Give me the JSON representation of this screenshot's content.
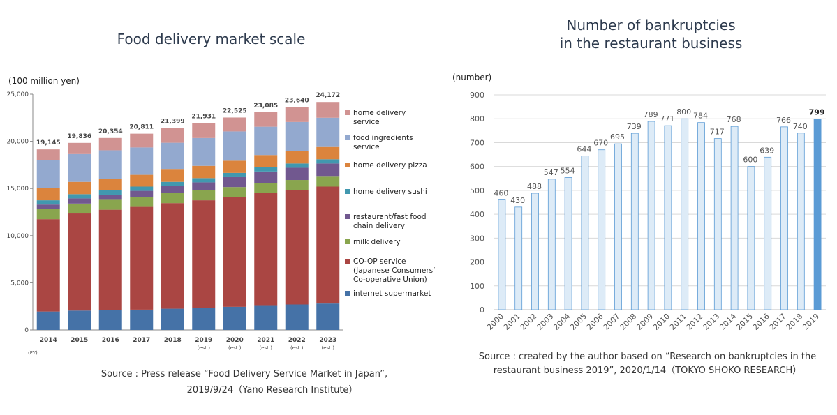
{
  "left": {
    "title": "Food delivery market scale",
    "unit": "(100 million yen)",
    "fy_label": "(FY)",
    "source_line1": "Source : Press release “Food Delivery Service Market in Japan”,",
    "source_line2": "2019/9/24（Yano Research Institute）"
  },
  "right": {
    "title_line1": "Number of bankruptcies",
    "title_line2": "in the restaurant business",
    "unit": "(number)",
    "source_line1": "Source : created by the author based on “Research on bankruptcies in the",
    "source_line2": "restaurant business 2019”, 2020/1/14（TOKYO SHOKO RESEARCH）"
  },
  "chart_data": [
    {
      "type": "bar",
      "stacked": true,
      "categories": [
        "2014",
        "2015",
        "2016",
        "2017",
        "2018",
        "2019",
        "2020",
        "2021",
        "2022",
        "2023"
      ],
      "category_sublabels": [
        "",
        "",
        "",
        "",
        "",
        "(est.)",
        "(est.)",
        "(est.)",
        "(est.)",
        "(est.)"
      ],
      "ylim": [
        0,
        25000
      ],
      "yticks": [
        0,
        5000,
        10000,
        15000,
        20000,
        25000
      ],
      "ytick_labels": [
        "0",
        "5,000",
        "10,000",
        "15,000",
        "20,000",
        "25,000"
      ],
      "totals": [
        19145,
        19836,
        20354,
        20811,
        21399,
        21931,
        22525,
        23085,
        23640,
        24172
      ],
      "total_labels": [
        "19,145",
        "19,836",
        "20,354",
        "20,811",
        "21,399",
        "21,931",
        "22,525",
        "23,085",
        "23,640",
        "24,172"
      ],
      "legend_position": "right",
      "series": [
        {
          "name": "internet supermarket",
          "color": "#4572a7",
          "values": [
            1950,
            2050,
            2100,
            2150,
            2250,
            2350,
            2450,
            2550,
            2700,
            2800
          ]
        },
        {
          "name": "CO-OP service (Japanese Consumers' Co-operative Union)",
          "color": "#aa4643",
          "values": [
            9800,
            10300,
            10650,
            10900,
            11200,
            11400,
            11650,
            11950,
            12150,
            12400
          ]
        },
        {
          "name": "milk delivery",
          "color": "#89a54e",
          "values": [
            1050,
            1050,
            1050,
            1050,
            1050,
            1050,
            1050,
            1050,
            1050,
            1050
          ]
        },
        {
          "name": "restaurant/fast food chain delivery",
          "color": "#71588f",
          "values": [
            500,
            550,
            550,
            650,
            750,
            850,
            1050,
            1250,
            1300,
            1400
          ]
        },
        {
          "name": "home delivery sushi",
          "color": "#4198af",
          "values": [
            450,
            450,
            450,
            450,
            450,
            450,
            450,
            450,
            450,
            450
          ]
        },
        {
          "name": "home delivery pizza",
          "color": "#db843d",
          "values": [
            1300,
            1300,
            1250,
            1250,
            1300,
            1300,
            1300,
            1300,
            1300,
            1300
          ]
        },
        {
          "name": "food ingredients service",
          "color": "#93a9cf",
          "values": [
            2950,
            2950,
            3000,
            2900,
            2850,
            2950,
            3100,
            3000,
            3100,
            3100
          ]
        },
        {
          "name": "home delivery service",
          "color": "#d19392",
          "values": [
            1145,
            1186,
            1304,
            1461,
            1549,
            1581,
            1475,
            1535,
            1590,
            1672
          ]
        }
      ],
      "legend_labels": [
        [
          "home delivery",
          " service"
        ],
        [
          "food ingredients",
          "service"
        ],
        [
          "home delivery pizza"
        ],
        [
          "home delivery sushi"
        ],
        [
          "restaurant/fast food",
          " chain delivery"
        ],
        [
          "milk delivery"
        ],
        [
          "CO-OP service",
          "(Japanese Consumers’",
          " Co-operative Union)"
        ],
        [
          "internet supermarket"
        ]
      ]
    },
    {
      "type": "bar",
      "categories": [
        "2000",
        "2001",
        "2002",
        "2003",
        "2004",
        "2005",
        "2006",
        "2007",
        "2008",
        "2009",
        "2010",
        "2011",
        "2012",
        "2013",
        "2014",
        "2015",
        "2016",
        "2017",
        "2018",
        "2019"
      ],
      "values": [
        460,
        430,
        488,
        547,
        554,
        644,
        670,
        695,
        739,
        789,
        771,
        800,
        784,
        717,
        768,
        600,
        639,
        766,
        740,
        799
      ],
      "ylim": [
        0,
        900
      ],
      "yticks": [
        0,
        100,
        200,
        300,
        400,
        500,
        600,
        700,
        800,
        900
      ],
      "grid": true,
      "bar_color": "#ddebf7",
      "bar_edge": "#5b9bd5",
      "highlight": {
        "index": 19,
        "color": "#5b9bd5"
      }
    }
  ]
}
